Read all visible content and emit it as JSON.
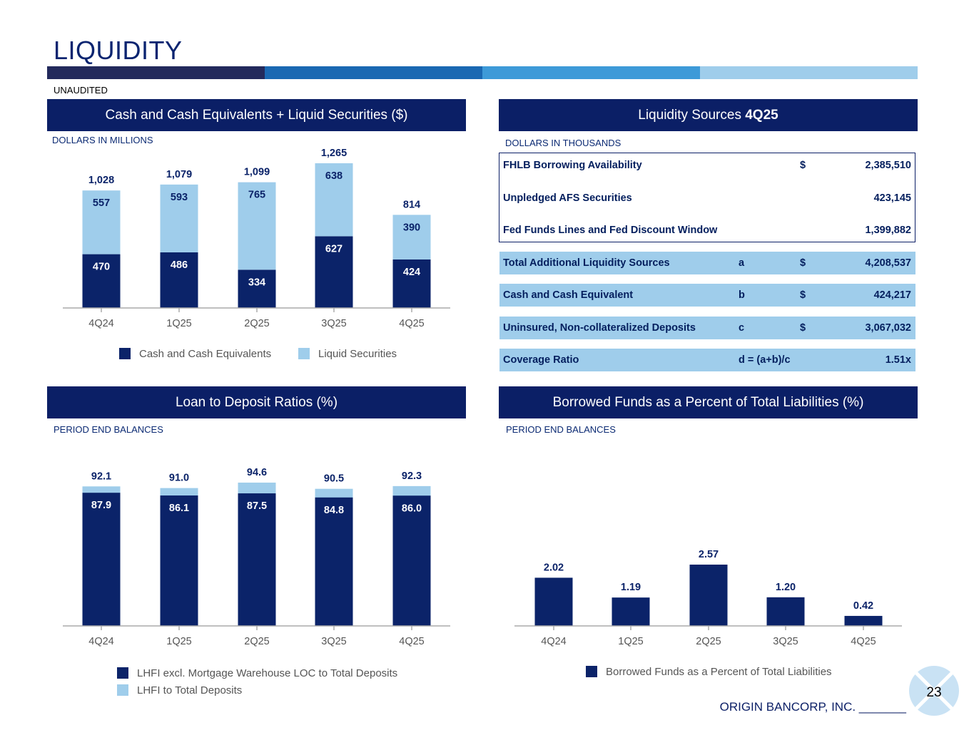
{
  "page": {
    "title": "LIQUIDITY",
    "unaudited": "UNAUDITED",
    "page_number": "23",
    "footer": "ORIGIN BANCORP, INC. _______",
    "stripe_colors": [
      "#232a5c",
      "#1a68b2",
      "#3d9ad8",
      "#9fcdeb"
    ]
  },
  "panels": {
    "cash": {
      "title": "Cash and Cash Equivalents + Liquid Securities ($)",
      "sublabel": "DOLLARS IN MILLIONS",
      "legend": [
        "Cash and Cash Equivalents",
        "Liquid Securities"
      ]
    },
    "sources": {
      "title_prefix": "Liquidity Sources ",
      "title_bold": "4Q25",
      "sublabel": "DOLLARS IN THOUSANDS",
      "rows": [
        {
          "label": "FHLB Borrowing Availability",
          "key": "",
          "currency": "$",
          "value": "2,385,510"
        },
        {
          "label": "Unpledged AFS Securities",
          "key": "",
          "currency": "",
          "value": "423,145"
        },
        {
          "label": "Fed Funds Lines and Fed Discount Window",
          "key": "",
          "currency": "",
          "value": "1,399,882"
        },
        {
          "label": "Total Additional Liquidity Sources",
          "key": "a",
          "currency": "$",
          "value": "4,208,537"
        },
        {
          "label": "Cash and Cash Equivalent",
          "key": "b",
          "currency": "$",
          "value": "424,217"
        },
        {
          "label": "Uninsured, Non-collateralized Deposits",
          "key": "c",
          "currency": "$",
          "value": "3,067,032"
        },
        {
          "label": "Coverage Ratio",
          "key": "d = (a+b)/c",
          "currency": "",
          "value": "1.51x"
        }
      ]
    },
    "ltd": {
      "title": "Loan to Deposit Ratios (%)",
      "sublabel": "PERIOD END BALANCES",
      "legend": [
        "LHFI excl. Mortgage Warehouse LOC to Total Deposits",
        "LHFI to Total Deposits"
      ]
    },
    "borrowed": {
      "title": "Borrowed Funds as a Percent of Total Liabilities (%)",
      "sublabel": "PERIOD END BALANCES",
      "legend": [
        "Borrowed Funds as a Percent of Total Liabilities"
      ]
    }
  },
  "chart_data": [
    {
      "type": "bar",
      "stacked": true,
      "categories": [
        "4Q24",
        "1Q25",
        "2Q25",
        "3Q25",
        "4Q25"
      ],
      "series": [
        {
          "name": "Cash and Cash Equivalents",
          "values": [
            470,
            486,
            334,
            627,
            424
          ],
          "color": "#0b2369"
        },
        {
          "name": "Liquid Securities",
          "values": [
            557,
            593,
            765,
            638,
            390
          ],
          "color": "#9fcdeb"
        }
      ],
      "totals": [
        "1,028",
        "1,079",
        "1,099",
        "1,265",
        "814"
      ],
      "ylim": [
        0,
        1300
      ]
    },
    {
      "type": "bar",
      "overlay": true,
      "categories": [
        "4Q24",
        "1Q25",
        "2Q25",
        "3Q25",
        "4Q25"
      ],
      "series": [
        {
          "name": "LHFI excl. Mortgage Warehouse LOC to Total Deposits",
          "values": [
            87.9,
            86.1,
            87.5,
            84.8,
            86.0
          ],
          "color": "#0b2369"
        },
        {
          "name": "LHFI to Total Deposits",
          "values": [
            92.1,
            91.0,
            94.6,
            90.5,
            92.3
          ],
          "color": "#9fcdeb"
        }
      ],
      "ylim": [
        0,
        100
      ]
    },
    {
      "type": "bar",
      "categories": [
        "4Q24",
        "1Q25",
        "2Q25",
        "3Q25",
        "4Q25"
      ],
      "series": [
        {
          "name": "Borrowed Funds as a Percent of Total Liabilities",
          "values": [
            2.02,
            1.19,
            2.57,
            1.2,
            0.42
          ],
          "color": "#0b2369"
        }
      ],
      "ylim": [
        0,
        4
      ]
    }
  ]
}
